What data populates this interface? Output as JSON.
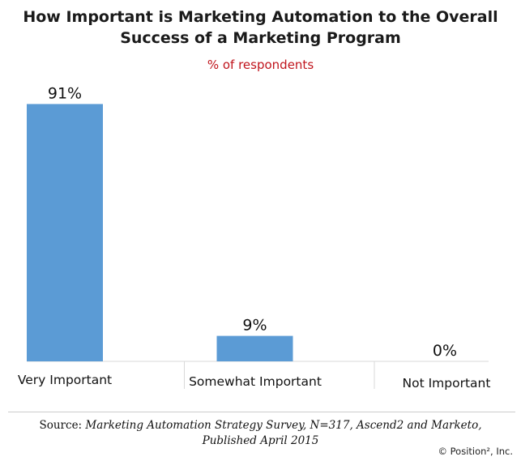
{
  "chart_data": {
    "type": "bar",
    "title_line1": "How Important is Marketing Automation to the Overall",
    "title_line2": "Success of a Marketing Program",
    "subtitle": "% of respondents",
    "categories": [
      "Very Important",
      "Somewhat Important",
      "Not Important"
    ],
    "values": [
      91,
      9,
      0
    ],
    "data_labels": [
      "91%",
      "9%",
      "0%"
    ],
    "unit": "%",
    "ylim": [
      0,
      100
    ],
    "grid": false,
    "bar_color": "#5b9bd5",
    "subtitle_color": "#c0141c"
  },
  "footer": {
    "source_label": "Source:",
    "source_text": "Marketing Automation Strategy Survey, N=317, Ascend2 and Marketo,",
    "source_line2": "Published April 2015",
    "copyright": "© Position², Inc."
  }
}
